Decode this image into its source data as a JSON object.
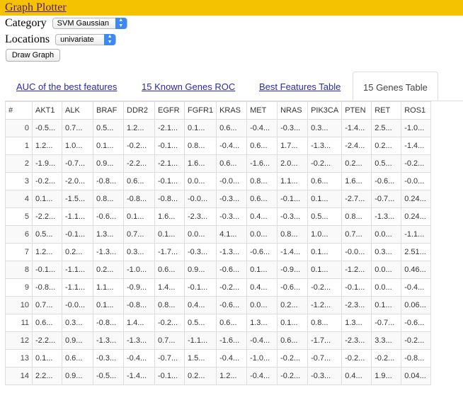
{
  "header": {
    "title": "Graph Plotter"
  },
  "controls": {
    "category_label": "Category",
    "category_value": "SVM Gaussian",
    "locations_label": "Locations",
    "locations_value": "univariate",
    "draw_button": "Draw Graph"
  },
  "tabs": [
    {
      "label": "AUC of the best features",
      "active": false
    },
    {
      "label": "15 Known Genes ROC",
      "active": false
    },
    {
      "label": "Best Features Table",
      "active": false
    },
    {
      "label": "15 Genes Table",
      "active": true
    }
  ],
  "table": {
    "columns": [
      "#",
      "AKT1",
      "ALK",
      "BRAF",
      "DDR2",
      "EGFR",
      "FGFR1",
      "KRAS",
      "MET",
      "NRAS",
      "PIK3CA",
      "PTEN",
      "RET",
      "ROS1"
    ],
    "rows": [
      [
        "0",
        "-0.5...",
        "0.7...",
        "0.5...",
        "1.2...",
        "-2.1...",
        "0.1...",
        "0.6...",
        "-0.4...",
        "-0.3...",
        "0.3...",
        "-1.4...",
        "2.5...",
        "-1.0..."
      ],
      [
        "1",
        "1.2...",
        "1.0...",
        "0.1...",
        "-0.2...",
        "-0.1...",
        "0.8...",
        "-0.4...",
        "0.6...",
        "1.7...",
        "-1.3...",
        "-2.4...",
        "0.2...",
        "-1.4..."
      ],
      [
        "2",
        "-1.9...",
        "-0.7...",
        "0.9...",
        "-2.2...",
        "-2.1...",
        "1.6...",
        "0.6...",
        "-1.6...",
        "2.0...",
        "-0.2...",
        "0.2...",
        "0.5...",
        "-0.2..."
      ],
      [
        "3",
        "-0.2...",
        "-2.0...",
        "-0.8...",
        "0.6...",
        "-0.1...",
        "0.0...",
        "-0.0...",
        "0.8...",
        "1.1...",
        "0.6...",
        "1.6...",
        "-0.6...",
        "-0.0..."
      ],
      [
        "4",
        "0.1...",
        "-1.5...",
        "0.8...",
        "-0.8...",
        "-0.8...",
        "-0.0...",
        "-0.3...",
        "0.6...",
        "-0.1...",
        "0.1...",
        "-2.7...",
        "-0.7...",
        "0.24..."
      ],
      [
        "5",
        "-2.2...",
        "-1.1...",
        "-0.6...",
        "0.1...",
        "1.6...",
        "-2.3...",
        "-0.3...",
        "0.4...",
        "-0.3...",
        "0.5...",
        "0.8...",
        "-1.3...",
        "0.24..."
      ],
      [
        "6",
        "0.5...",
        "-0.1...",
        "1.3...",
        "0.7...",
        "0.1...",
        "0.0...",
        "4.1...",
        "0.0...",
        "0.8...",
        "1.0...",
        "0.7...",
        "0.0...",
        "-1.1..."
      ],
      [
        "7",
        "1.2...",
        "0.2...",
        "-1.3...",
        "0.3...",
        "-1.7...",
        "-0.3...",
        "-1.3...",
        "-0.6...",
        "-1.4...",
        "0.1...",
        "-0.0...",
        "0.3...",
        "2.51..."
      ],
      [
        "8",
        "-0.1...",
        "-1.1...",
        "0.2...",
        "-1.0...",
        "0.6...",
        "0.9...",
        "-0.6...",
        "0.1...",
        "-0.9...",
        "0.1...",
        "-1.2...",
        "0.0...",
        "0.46..."
      ],
      [
        "9",
        "-0.8...",
        "-1.1...",
        "1.1...",
        "-0.9...",
        "1.4...",
        "-0.1...",
        "-0.2...",
        "0.4...",
        "-0.6...",
        "-0.2...",
        "-0.1...",
        "0.0...",
        "-0.4..."
      ],
      [
        "10",
        "0.7...",
        "-0.0...",
        "0.1...",
        "-0.8...",
        "0.8...",
        "0.4...",
        "-0.6...",
        "0.0...",
        "0.2...",
        "-1.2...",
        "-2.3...",
        "0.1...",
        "0.06..."
      ],
      [
        "11",
        "0.6...",
        "0.3...",
        "-0.8...",
        "1.4...",
        "-0.2...",
        "0.5...",
        "0.6...",
        "1.3...",
        "0.1...",
        "0.8...",
        "1.3...",
        "-0.7...",
        "-0.6..."
      ],
      [
        "12",
        "-2.2...",
        "0.9...",
        "-1.3...",
        "-1.3...",
        "0.7...",
        "-1.1...",
        "-1.6...",
        "-0.4...",
        "0.6...",
        "-1.7...",
        "-2.3...",
        "3.3...",
        "-0.2..."
      ],
      [
        "13",
        "0.1...",
        "0.6...",
        "-0.3...",
        "-0.4...",
        "-0.7...",
        "1.5...",
        "-0.4...",
        "-1.0...",
        "-0.2...",
        "-0.7...",
        "-0.2...",
        "-0.2...",
        "-0.8..."
      ],
      [
        "14",
        "2.2...",
        "0.9...",
        "-0.5...",
        "-1.4...",
        "-0.1...",
        "0.2...",
        "1.2...",
        "-0.4...",
        "-0.2...",
        "-0.3...",
        "0.4...",
        "1.9...",
        "0.04..."
      ]
    ]
  }
}
